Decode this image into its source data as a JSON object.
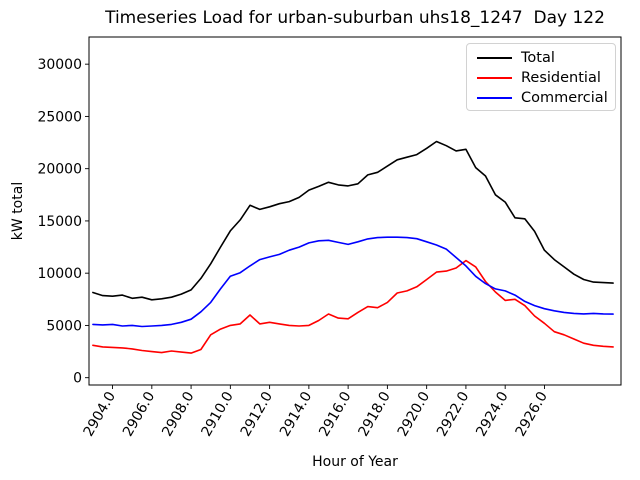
{
  "chart_data": {
    "type": "line",
    "title": "Timeseries Load for urban-suburban uhs18_1247  Day 122",
    "xlabel": "Hour of Year",
    "ylabel": "kW total",
    "grid": false,
    "legend_position": "upper right",
    "xlim": [
      2902.8,
      2929.9
    ],
    "ylim": [
      -700,
      32600
    ],
    "x_tick_labels": [
      "2904.0",
      "2906.0",
      "2908.0",
      "2910.0",
      "2912.0",
      "2914.0",
      "2916.0",
      "2918.0",
      "2920.0",
      "2922.0",
      "2924.0",
      "2926.0"
    ],
    "x_ticks": [
      2904.0,
      2906.0,
      2908.0,
      2910.0,
      2912.0,
      2914.0,
      2916.0,
      2918.0,
      2920.0,
      2922.0,
      2924.0,
      2926.0
    ],
    "y_tick_labels": [
      "0",
      "5000",
      "10000",
      "15000",
      "20000",
      "25000",
      "30000"
    ],
    "y_ticks": [
      0,
      5000,
      10000,
      15000,
      20000,
      25000,
      30000
    ],
    "x": [
      2903.0,
      2903.5,
      2904.0,
      2904.5,
      2905.0,
      2905.5,
      2906.0,
      2906.5,
      2907.0,
      2907.5,
      2908.0,
      2908.5,
      2909.0,
      2909.5,
      2910.0,
      2910.5,
      2911.0,
      2911.5,
      2912.0,
      2912.5,
      2913.0,
      2913.5,
      2914.0,
      2914.5,
      2915.0,
      2915.5,
      2916.0,
      2916.5,
      2917.0,
      2917.5,
      2918.0,
      2918.5,
      2919.0,
      2919.5,
      2920.0,
      2920.5,
      2921.0,
      2921.5,
      2922.0,
      2922.5,
      2923.0,
      2923.5,
      2924.0,
      2924.5,
      2925.0,
      2925.5,
      2926.0,
      2926.5,
      2927.0,
      2927.5,
      2928.0,
      2928.5,
      2929.0,
      2929.5
    ],
    "series": [
      {
        "name": "Total",
        "color": "#000000",
        "values": [
          8150,
          7850,
          7800,
          7900,
          7600,
          7700,
          7450,
          7550,
          7700,
          8000,
          8400,
          9500,
          10900,
          12500,
          14050,
          15100,
          16500,
          16100,
          16350,
          16650,
          16850,
          17250,
          17950,
          18300,
          18700,
          18450,
          18350,
          18550,
          19400,
          19650,
          20250,
          20850,
          21100,
          21350,
          21950,
          22600,
          22200,
          21700,
          21850,
          20100,
          19300,
          17500,
          16800,
          15300,
          15200,
          14000,
          12200,
          11300,
          10600,
          9900,
          9400,
          9150,
          9100,
          9050
        ]
      },
      {
        "name": "Residential",
        "color": "#ff0000",
        "values": [
          3100,
          2950,
          2900,
          2850,
          2750,
          2600,
          2500,
          2400,
          2550,
          2450,
          2350,
          2700,
          4100,
          4650,
          5000,
          5150,
          6000,
          5150,
          5300,
          5150,
          5000,
          4950,
          5000,
          5470,
          6090,
          5700,
          5630,
          6250,
          6800,
          6700,
          7200,
          8100,
          8300,
          8700,
          9400,
          10100,
          10200,
          10500,
          11200,
          10600,
          9200,
          8200,
          7400,
          7500,
          6900,
          5900,
          5200,
          4400,
          4100,
          3700,
          3300,
          3100,
          3000,
          2950
        ]
      },
      {
        "name": "Commercial",
        "color": "#0000ff",
        "values": [
          5100,
          5050,
          5100,
          4950,
          5000,
          4900,
          4950,
          5000,
          5100,
          5300,
          5600,
          6300,
          7200,
          8500,
          9700,
          10050,
          10700,
          11300,
          11560,
          11800,
          12200,
          12500,
          12900,
          13100,
          13150,
          12950,
          12750,
          13000,
          13280,
          13400,
          13440,
          13440,
          13400,
          13300,
          13000,
          12700,
          12300,
          11500,
          10700,
          9700,
          9000,
          8500,
          8300,
          7900,
          7300,
          6900,
          6600,
          6400,
          6250,
          6150,
          6100,
          6150,
          6100,
          6080
        ]
      }
    ]
  }
}
